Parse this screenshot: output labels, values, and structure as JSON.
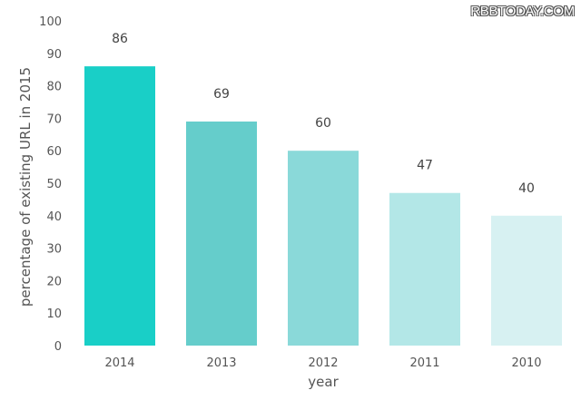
{
  "watermark": "RBBTODAY.COM",
  "chart_data": {
    "type": "bar",
    "categories": [
      "2014",
      "2013",
      "2012",
      "2011",
      "2010"
    ],
    "values": [
      86,
      69,
      60,
      47,
      40
    ],
    "data_labels": [
      "86",
      "69",
      "60",
      "47",
      "40"
    ],
    "bar_colors": [
      "#19cfc7",
      "#65cdcb",
      "#8ad9d9",
      "#b3e7e7",
      "#d7f1f2"
    ],
    "xlabel": "year",
    "ylabel": "percentage of existing URL in 2015",
    "ylim": [
      0,
      100
    ],
    "yticks": [
      "0",
      "10",
      "20",
      "30",
      "40",
      "50",
      "60",
      "70",
      "80",
      "90",
      "100"
    ],
    "grid": false
  }
}
